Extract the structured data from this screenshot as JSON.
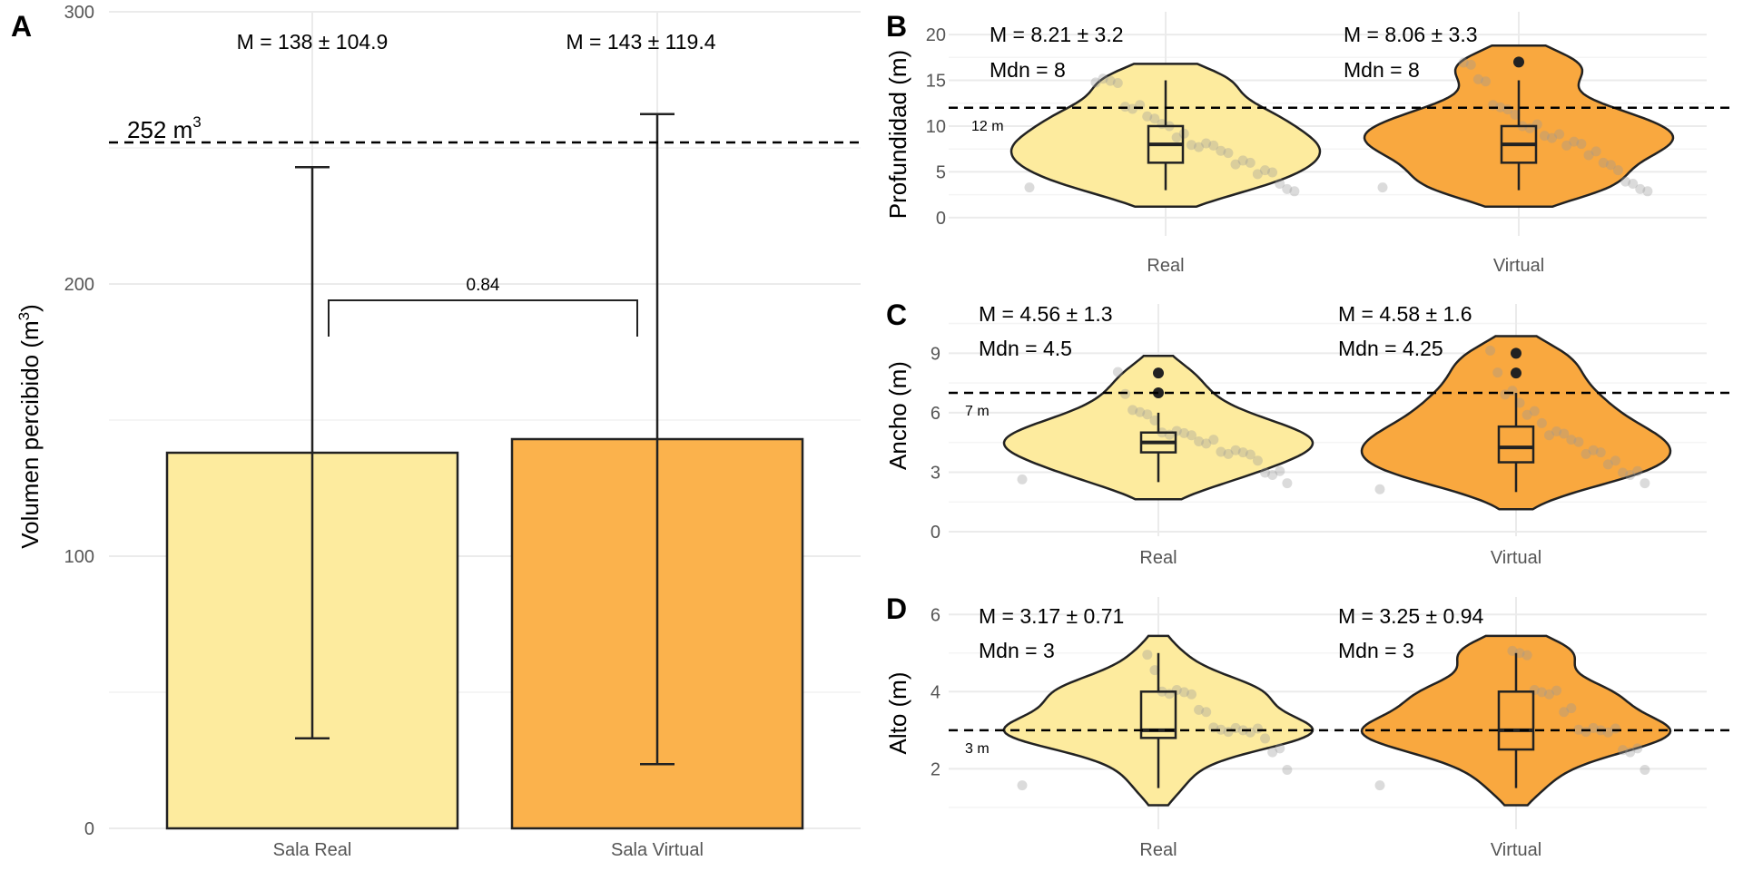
{
  "colors": {
    "real_fill": "#FDEB9E",
    "virtual_fill": "#FBB24C",
    "violin_real": "#FDEB9E",
    "violin_virtual": "#F9A83F",
    "stroke": "#222222",
    "grid": "#EBEBEB",
    "point": "#999999"
  },
  "chart_data": [
    {
      "panel": "A",
      "type": "bar",
      "categories": [
        "Sala Real",
        "Sala Virtual"
      ],
      "values": [
        138,
        143
      ],
      "error_sd": [
        104.9,
        119.4
      ],
      "ylabel": "Volumen percibido (m",
      "ylabel_sup": "3",
      "ylabel_end": ")",
      "ylim": [
        0,
        300
      ],
      "yticks": [
        "0",
        "100",
        "200",
        "300"
      ],
      "reference_line": {
        "value": 252,
        "label": "252 m",
        "label_sup": "3"
      },
      "stats_labels": [
        "M = 138 ± 104.9",
        "M = 143 ± 119.4"
      ],
      "comparison": {
        "label": "0.84",
        "y": 194
      },
      "grid": true
    },
    {
      "panel": "B",
      "type": "violin",
      "categories": [
        "Real",
        "Virtual"
      ],
      "ylabel": "Profundidad (m)",
      "ylim": [
        -1.5,
        21
      ],
      "yticks": [
        "0",
        "5",
        "10",
        "15",
        "20"
      ],
      "reference_line": {
        "value": 12,
        "label": "12 m"
      },
      "stats": [
        {
          "mean_label": "M = 8.21 ± 3.2",
          "median_label": "Mdn = 8"
        },
        {
          "mean_label": "M = 8.06 ± 3.3",
          "median_label": "Mdn = 8"
        }
      ],
      "boxplot": [
        {
          "whisker_low": 3,
          "q1": 6,
          "median": 8,
          "q3": 10,
          "whisker_high": 15,
          "outliers": []
        },
        {
          "whisker_low": 3,
          "q1": 6,
          "median": 8,
          "q3": 10,
          "whisker_high": 15,
          "outliers": [
            17
          ]
        }
      ],
      "points": [
        [
          3,
          3,
          3,
          4,
          5,
          5,
          5,
          6,
          6,
          6,
          7,
          7,
          8,
          8,
          8,
          8,
          9,
          9,
          10,
          10,
          11,
          11,
          12,
          12,
          12,
          15,
          15,
          15,
          15
        ],
        [
          3,
          3,
          3,
          4,
          4,
          5,
          6,
          6,
          7,
          7,
          8,
          8,
          8,
          9,
          9,
          9,
          10,
          10,
          10,
          11,
          12,
          12,
          12,
          15,
          15,
          17,
          17
        ]
      ],
      "grid": true
    },
    {
      "panel": "C",
      "type": "violin",
      "categories": [
        "Real",
        "Virtual"
      ],
      "ylabel": "Ancho (m)",
      "ylim": [
        0,
        10.8
      ],
      "yticks": [
        "0",
        "3",
        "6",
        "9"
      ],
      "reference_line": {
        "value": 7,
        "label": "7 m"
      },
      "stats": [
        {
          "mean_label": "M = 4.56 ± 1.3",
          "median_label": "Mdn = 4.5"
        },
        {
          "mean_label": "M = 4.58 ± 1.6",
          "median_label": "Mdn = 4.25"
        }
      ],
      "boxplot": [
        {
          "whisker_low": 2.5,
          "q1": 4,
          "median": 4.5,
          "q3": 5,
          "whisker_high": 6,
          "outliers": [
            7,
            8
          ]
        },
        {
          "whisker_low": 2,
          "q1": 3.5,
          "median": 4.25,
          "q3": 5.3,
          "whisker_high": 7,
          "outliers": [
            8,
            9
          ]
        }
      ],
      "points": [
        [
          2.5,
          2.5,
          3,
          3,
          3,
          3.5,
          4,
          4,
          4,
          4,
          4,
          4.5,
          4.5,
          4.5,
          5,
          5,
          5,
          5,
          5,
          5.5,
          6,
          6,
          6,
          7,
          8
        ],
        [
          2,
          2.5,
          3,
          3,
          3,
          3.5,
          3.5,
          4,
          4,
          4,
          4.5,
          4.5,
          5,
          5,
          5,
          5.5,
          6,
          6,
          6.5,
          7,
          7,
          8,
          9
        ]
      ],
      "grid": true
    },
    {
      "panel": "D",
      "type": "violin",
      "categories": [
        "Real",
        "Virtual"
      ],
      "ylabel": "Alto (m)",
      "ylim": [
        0.55,
        6.1
      ],
      "yticks": [
        "2",
        "4",
        "6"
      ],
      "reference_line": {
        "value": 3,
        "label": "3 m"
      },
      "stats": [
        {
          "mean_label": "M = 3.17 ± 0.71",
          "median_label": "Mdn = 3"
        },
        {
          "mean_label": "M = 3.25 ± 0.94",
          "median_label": "Mdn = 3"
        }
      ],
      "boxplot": [
        {
          "whisker_low": 1.5,
          "q1": 2.8,
          "median": 3,
          "q3": 4,
          "whisker_high": 5,
          "outliers": []
        },
        {
          "whisker_low": 1.5,
          "q1": 2.5,
          "median": 3,
          "q3": 4,
          "whisker_high": 5,
          "outliers": []
        }
      ],
      "points": [
        [
          1.5,
          2,
          2.5,
          2.5,
          2.8,
          3,
          3,
          3,
          3,
          3,
          3,
          3,
          3.5,
          3.5,
          4,
          4,
          4,
          4,
          4,
          4.5,
          5
        ],
        [
          1.5,
          2,
          2.5,
          2.5,
          2.5,
          3,
          3,
          3,
          3,
          3,
          3,
          3.5,
          3.5,
          4,
          4,
          4,
          4,
          5,
          5,
          5
        ]
      ],
      "grid": true
    }
  ],
  "panel_labels": [
    "A",
    "B",
    "C",
    "D"
  ]
}
